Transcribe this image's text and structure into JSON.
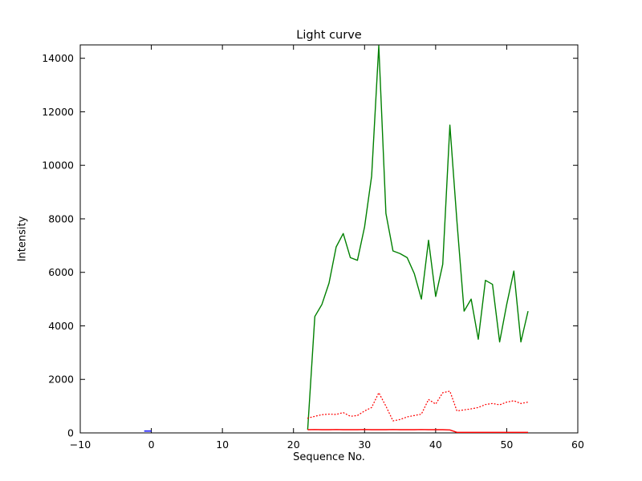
{
  "figure": {
    "title": "Light curve",
    "xlabel": "Sequence No.",
    "ylabel": "Intensity"
  },
  "chart_data": {
    "type": "line",
    "title": "Light curve",
    "xlabel": "Sequence No.",
    "ylabel": "Intensity",
    "xlim": [
      -10,
      60
    ],
    "ylim": [
      0,
      14500
    ],
    "xticks": [
      -10,
      0,
      10,
      20,
      30,
      40,
      50,
      60
    ],
    "yticks": [
      0,
      2000,
      4000,
      6000,
      8000,
      10000,
      12000,
      14000
    ],
    "grid": false,
    "legend": "none",
    "frame_color": "#000000",
    "series": [
      {
        "name": "green-solid",
        "color": "#008000",
        "style": "solid",
        "x": [
          22,
          23,
          24,
          25,
          26,
          27,
          28,
          29,
          30,
          31,
          32,
          33,
          34,
          35,
          36,
          37,
          38,
          39,
          40,
          41,
          42,
          43,
          44,
          45,
          46,
          47,
          48,
          49,
          50,
          51,
          52,
          53
        ],
        "y": [
          120,
          4350,
          4800,
          5600,
          6950,
          7450,
          6550,
          6450,
          7700,
          9600,
          14470,
          8200,
          6800,
          6700,
          6550,
          5950,
          5000,
          7200,
          5100,
          6300,
          11500,
          7900,
          4550,
          5000,
          3500,
          5700,
          5550,
          3400,
          4800,
          6050,
          3400,
          4550
        ]
      },
      {
        "name": "red-dotted",
        "color": "#ff0000",
        "style": "dotted",
        "x": [
          22,
          23,
          24,
          25,
          26,
          27,
          28,
          29,
          30,
          31,
          32,
          33,
          34,
          35,
          36,
          37,
          38,
          39,
          40,
          41,
          42,
          43,
          44,
          45,
          46,
          47,
          48,
          49,
          50,
          51,
          52,
          53
        ],
        "y": [
          550,
          620,
          680,
          700,
          690,
          760,
          620,
          650,
          820,
          950,
          1500,
          1000,
          450,
          500,
          600,
          650,
          700,
          1250,
          1080,
          1500,
          1560,
          820,
          860,
          900,
          950,
          1060,
          1100,
          1050,
          1150,
          1200,
          1100,
          1150
        ]
      },
      {
        "name": "red-solid",
        "color": "#ff0000",
        "style": "solid",
        "x": [
          22,
          23,
          24,
          25,
          26,
          27,
          28,
          29,
          30,
          31,
          32,
          33,
          34,
          35,
          36,
          37,
          38,
          39,
          40,
          41,
          42,
          43,
          44,
          45,
          46,
          47,
          48,
          49,
          50,
          51,
          52,
          53
        ],
        "y": [
          120,
          125,
          120,
          120,
          125,
          120,
          120,
          120,
          125,
          120,
          120,
          120,
          125,
          120,
          120,
          120,
          125,
          120,
          120,
          120,
          110,
          20,
          20,
          20,
          20,
          20,
          20,
          20,
          20,
          20,
          20,
          20
        ]
      },
      {
        "name": "blue-solid",
        "color": "#0000ff",
        "style": "solid",
        "x": [
          -1,
          0
        ],
        "y": [
          70,
          70
        ]
      }
    ]
  }
}
